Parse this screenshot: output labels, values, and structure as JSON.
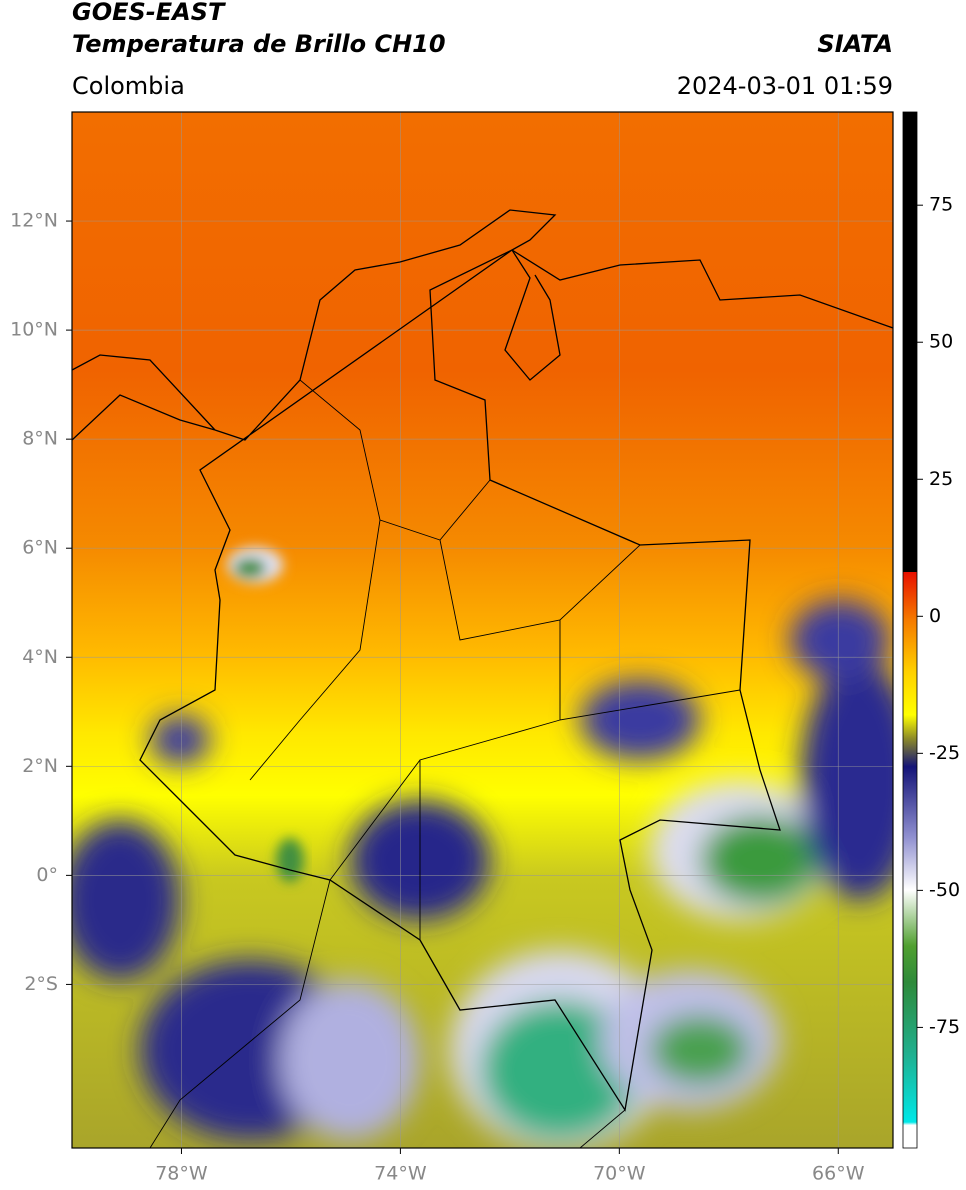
{
  "header": {
    "title": "GOES-EAST",
    "subtitle": "Temperatura de Brillo CH10",
    "source": "SIATA",
    "region": "Colombia",
    "timestamp": "2024-03-01 01:59"
  },
  "map": {
    "xlim": [
      -80,
      -65
    ],
    "ylim": [
      -5,
      14
    ],
    "xticks": [
      {
        "value": -78,
        "label": "78°W"
      },
      {
        "value": -74,
        "label": "74°W"
      },
      {
        "value": -70,
        "label": "70°W"
      },
      {
        "value": -66,
        "label": "66°W"
      }
    ],
    "yticks": [
      {
        "value": 12,
        "label": "12°N"
      },
      {
        "value": 10,
        "label": "10°N"
      },
      {
        "value": 8,
        "label": "8°N"
      },
      {
        "value": 6,
        "label": "6°N"
      },
      {
        "value": 4,
        "label": "4°N"
      },
      {
        "value": 2,
        "label": "2°N"
      },
      {
        "value": 0,
        "label": "0°"
      },
      {
        "value": -2,
        "label": "2°S"
      }
    ],
    "grid": true
  },
  "colorbar": {
    "lim": [
      -97,
      92
    ],
    "ticks": [
      75,
      50,
      25,
      0,
      -25,
      -50,
      -75
    ]
  }
}
